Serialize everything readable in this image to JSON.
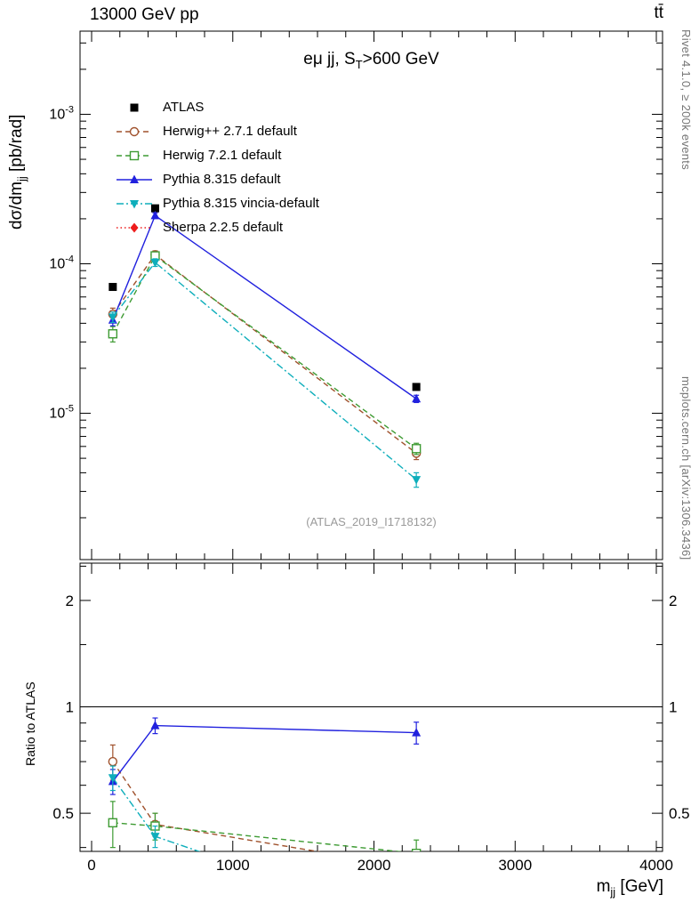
{
  "header": {
    "left": "13000 GeV pp",
    "right": "tt̄"
  },
  "panel": {
    "title": {
      "pre": "eμ jj, S",
      "sub": "T",
      "post": ">600 GeV"
    },
    "ylabel": {
      "pre": "dσ/dm",
      "sub": "jj",
      "post": " [pb/rad]"
    },
    "xlabel": {
      "pre": "m",
      "sub": "jj",
      "post": " [GeV]"
    },
    "ratio_label": "Ratio to ATLAS",
    "annotation": "(ATLAS_2019_I1718132)"
  },
  "sidebar_right": {
    "top": "Rivet 4.1.0, ≥ 200k events",
    "bottom": "mcplots.cern.ch [arXiv:1306.3436]"
  },
  "chart_data": {
    "type": "line",
    "title": "eμ jj, S_T>600 GeV",
    "xlabel": "m_jj [GeV]",
    "ylabel": "dσ/dm_jj [pb/rad]",
    "ratio_ylabel": "Ratio to ATLAS",
    "x_axis": {
      "lim": [
        -82,
        4044
      ],
      "major_ticks": [
        0,
        1000,
        2000,
        3000,
        4000
      ],
      "minor_step": 200
    },
    "y_axis_main": {
      "scale": "log",
      "lim": [
        1.05e-06,
        0.0036
      ],
      "major_tick_exponents": [
        -3,
        -4,
        -5
      ]
    },
    "y_axis_ratio": {
      "scale": "log",
      "lim": [
        0.39,
        2.55
      ],
      "major_ticks": [
        0.5,
        1,
        2
      ],
      "minor_ticks": [
        0.4,
        0.6,
        0.7,
        0.8,
        0.9,
        1.5,
        2.5
      ]
    },
    "x": [
      150,
      450,
      2300
    ],
    "series": [
      {
        "name": "ATLAS",
        "color": "#000000",
        "marker": "square",
        "line": "none",
        "values": [
          7e-05,
          0.000235,
          1.5e-05
        ],
        "yerr": [
          0,
          0,
          0
        ],
        "ratio": null
      },
      {
        "name": "Herwig++ 2.7.1 default",
        "color": "#a0522d",
        "marker": "circle-open",
        "line": "dashed",
        "values": [
          4.6e-05,
          0.000115,
          5.4e-06
        ],
        "yerr": [
          4.5e-06,
          7e-06,
          5e-07
        ],
        "ratio": [
          0.7,
          0.465,
          0.35
        ],
        "ratio_err": [
          0.08,
          0.035,
          0.03
        ]
      },
      {
        "name": "Herwig 7.2.1 default",
        "color": "#3e9b33",
        "marker": "square-open",
        "line": "dashed",
        "values": [
          3.4e-05,
          0.000113,
          5.8e-06
        ],
        "yerr": [
          4e-06,
          7e-06,
          5e-07
        ],
        "ratio": [
          0.47,
          0.46,
          0.385
        ],
        "ratio_err": [
          0.07,
          0.04,
          0.035
        ]
      },
      {
        "name": "Pythia 8.315 default",
        "color": "#2121de",
        "marker": "triangle-up",
        "line": "solid",
        "values": [
          4.2e-05,
          0.00021,
          1.25e-05
        ],
        "yerr": [
          3.5e-06,
          9e-06,
          7e-07
        ],
        "ratio": [
          0.615,
          0.885,
          0.845
        ],
        "ratio_err": [
          0.05,
          0.045,
          0.06
        ]
      },
      {
        "name": "Pythia 8.315 vincia-default",
        "color": "#0eaebb",
        "marker": "triangle-down",
        "line": "dashdot",
        "values": [
          4.4e-05,
          0.000102,
          3.6e-06
        ],
        "yerr": [
          3.5e-06,
          6e-06,
          4e-07
        ],
        "ratio": [
          0.63,
          0.43,
          0.24
        ],
        "ratio_err": [
          0.05,
          0.03,
          0.03
        ]
      },
      {
        "name": "Sherpa 2.2.5 default",
        "color": "#ee1c1c",
        "marker": "diamond",
        "line": "dotted",
        "values": [],
        "yerr": [],
        "ratio": null
      }
    ]
  }
}
